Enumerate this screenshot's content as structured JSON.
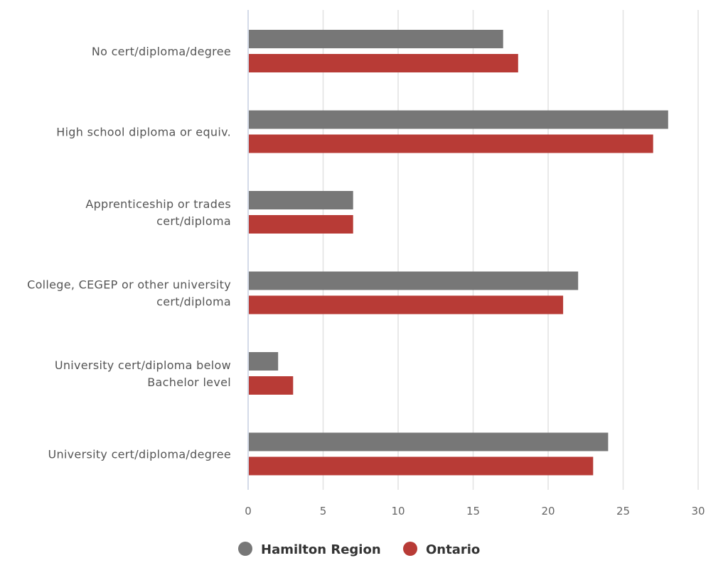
{
  "chart_data": {
    "type": "bar",
    "orientation": "horizontal",
    "categories": [
      [
        "No cert/diploma/degree"
      ],
      [
        "High school diploma or equiv."
      ],
      [
        "Apprenticeship or trades",
        "cert/diploma"
      ],
      [
        "College, CEGEP or other university",
        "cert/diploma"
      ],
      [
        "University cert/diploma below",
        "Bachelor level"
      ],
      [
        "University cert/diploma/degree"
      ]
    ],
    "series": [
      {
        "name": "Hamilton Region",
        "color": "#777777",
        "values": [
          17,
          28,
          7,
          22,
          2,
          24
        ]
      },
      {
        "name": "Ontario",
        "color": "#b83b36",
        "values": [
          18,
          27,
          7,
          21,
          3,
          23
        ]
      }
    ],
    "xlim": [
      0,
      30
    ],
    "xticks": [
      0,
      5,
      10,
      15,
      20,
      25,
      30
    ],
    "grid": true,
    "legend_position": "bottom-center",
    "title": "",
    "xlabel": "",
    "ylabel": ""
  }
}
